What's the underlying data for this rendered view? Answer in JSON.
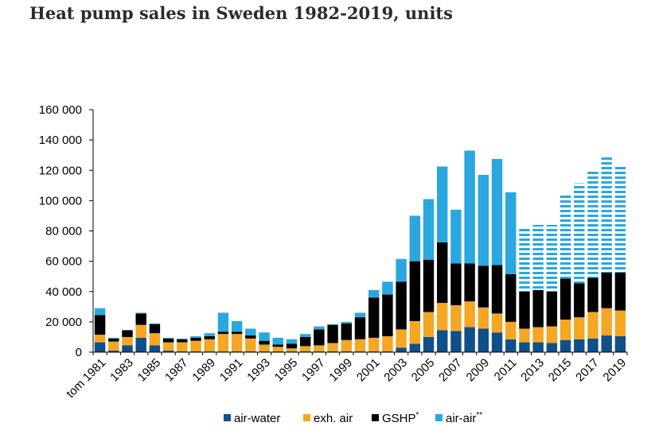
{
  "chart_data": {
    "type": "bar",
    "stacked": true,
    "title": "Heat pump sales in Sweden 1982-2019, units",
    "xlabel": "",
    "ylabel": "",
    "ylim": [
      0,
      160000
    ],
    "yticks": [
      0,
      20000,
      40000,
      60000,
      80000,
      100000,
      120000,
      140000,
      160000
    ],
    "ytick_labels": [
      "0",
      "20 000",
      "40 000",
      "60 000",
      "80 000",
      "100 000",
      "120 000",
      "140 000",
      "160 000"
    ],
    "categories": [
      "tom 1981",
      "1982",
      "1983",
      "1984",
      "1985",
      "1986",
      "1987",
      "1988",
      "1989",
      "1990",
      "1991",
      "1992",
      "1993",
      "1994",
      "1995",
      "1996",
      "1997",
      "1998",
      "1999",
      "2000",
      "2001",
      "2002",
      "2003",
      "2004",
      "2005",
      "2006",
      "2007",
      "2008",
      "2009",
      "2010",
      "2011",
      "2012",
      "2013",
      "2014",
      "2015",
      "2016",
      "2017",
      "2018",
      "2019"
    ],
    "tick_labels": [
      "tom 1981",
      "1983",
      "1985",
      "1987",
      "1989",
      "1991",
      "1993",
      "1995",
      "1997",
      "1999",
      "2001",
      "2003",
      "2005",
      "2007",
      "2009",
      "2011",
      "2013",
      "2015",
      "2017",
      "2019"
    ],
    "tick_label_indices": [
      0,
      2,
      4,
      6,
      8,
      10,
      12,
      14,
      16,
      18,
      20,
      22,
      24,
      26,
      28,
      30,
      32,
      34,
      36,
      38
    ],
    "series": [
      {
        "name": "air-water",
        "sup": "",
        "color": "#0f4f8a",
        "values": [
          6500,
          1000,
          4500,
          9500,
          4500,
          1000,
          500,
          500,
          500,
          500,
          500,
          500,
          500,
          500,
          500,
          500,
          500,
          500,
          500,
          500,
          500,
          500,
          3000,
          5500,
          10000,
          14500,
          14000,
          16500,
          15500,
          13000,
          8500,
          6500,
          6500,
          6000,
          8000,
          8500,
          9000,
          11000,
          10500
        ]
      },
      {
        "name": "exh. air",
        "sup": "",
        "color": "#f5a623",
        "values": [
          5000,
          6000,
          5500,
          8500,
          8000,
          5500,
          6000,
          7000,
          8000,
          11500,
          11500,
          8500,
          4500,
          3000,
          2000,
          3500,
          4000,
          5500,
          7500,
          8000,
          9000,
          10000,
          12000,
          15000,
          16500,
          18000,
          17000,
          17000,
          14000,
          12500,
          11500,
          9000,
          10000,
          11000,
          13500,
          14500,
          17500,
          18000,
          17000
        ]
      },
      {
        "name": "GSHP",
        "sup": "*",
        "color": "#000000",
        "values": [
          13000,
          2000,
          4500,
          7500,
          6000,
          2500,
          2000,
          2000,
          2000,
          1500,
          1500,
          2000,
          2500,
          1500,
          3000,
          6000,
          10500,
          12000,
          11000,
          14500,
          26500,
          27500,
          31500,
          39500,
          34500,
          40000,
          27500,
          25000,
          27500,
          32000,
          31500,
          24500,
          24500,
          23000,
          27000,
          22500,
          22500,
          23500,
          25000
        ]
      },
      {
        "name": "air-air",
        "sup": "**",
        "color": "#2aa7df",
        "values": [
          4500,
          500,
          0,
          500,
          500,
          500,
          500,
          1000,
          2000,
          12500,
          7000,
          4500,
          5500,
          4500,
          3000,
          2000,
          2000,
          500,
          1000,
          3000,
          5000,
          8500,
          15000,
          30000,
          40000,
          50000,
          35500,
          74500,
          60000,
          70000,
          54000,
          41500,
          43000,
          44000,
          55000,
          66000,
          71000,
          76000,
          70000
        ]
      }
    ],
    "hatched_from_index": 31,
    "legend_position": "bottom-center",
    "grid": false
  }
}
